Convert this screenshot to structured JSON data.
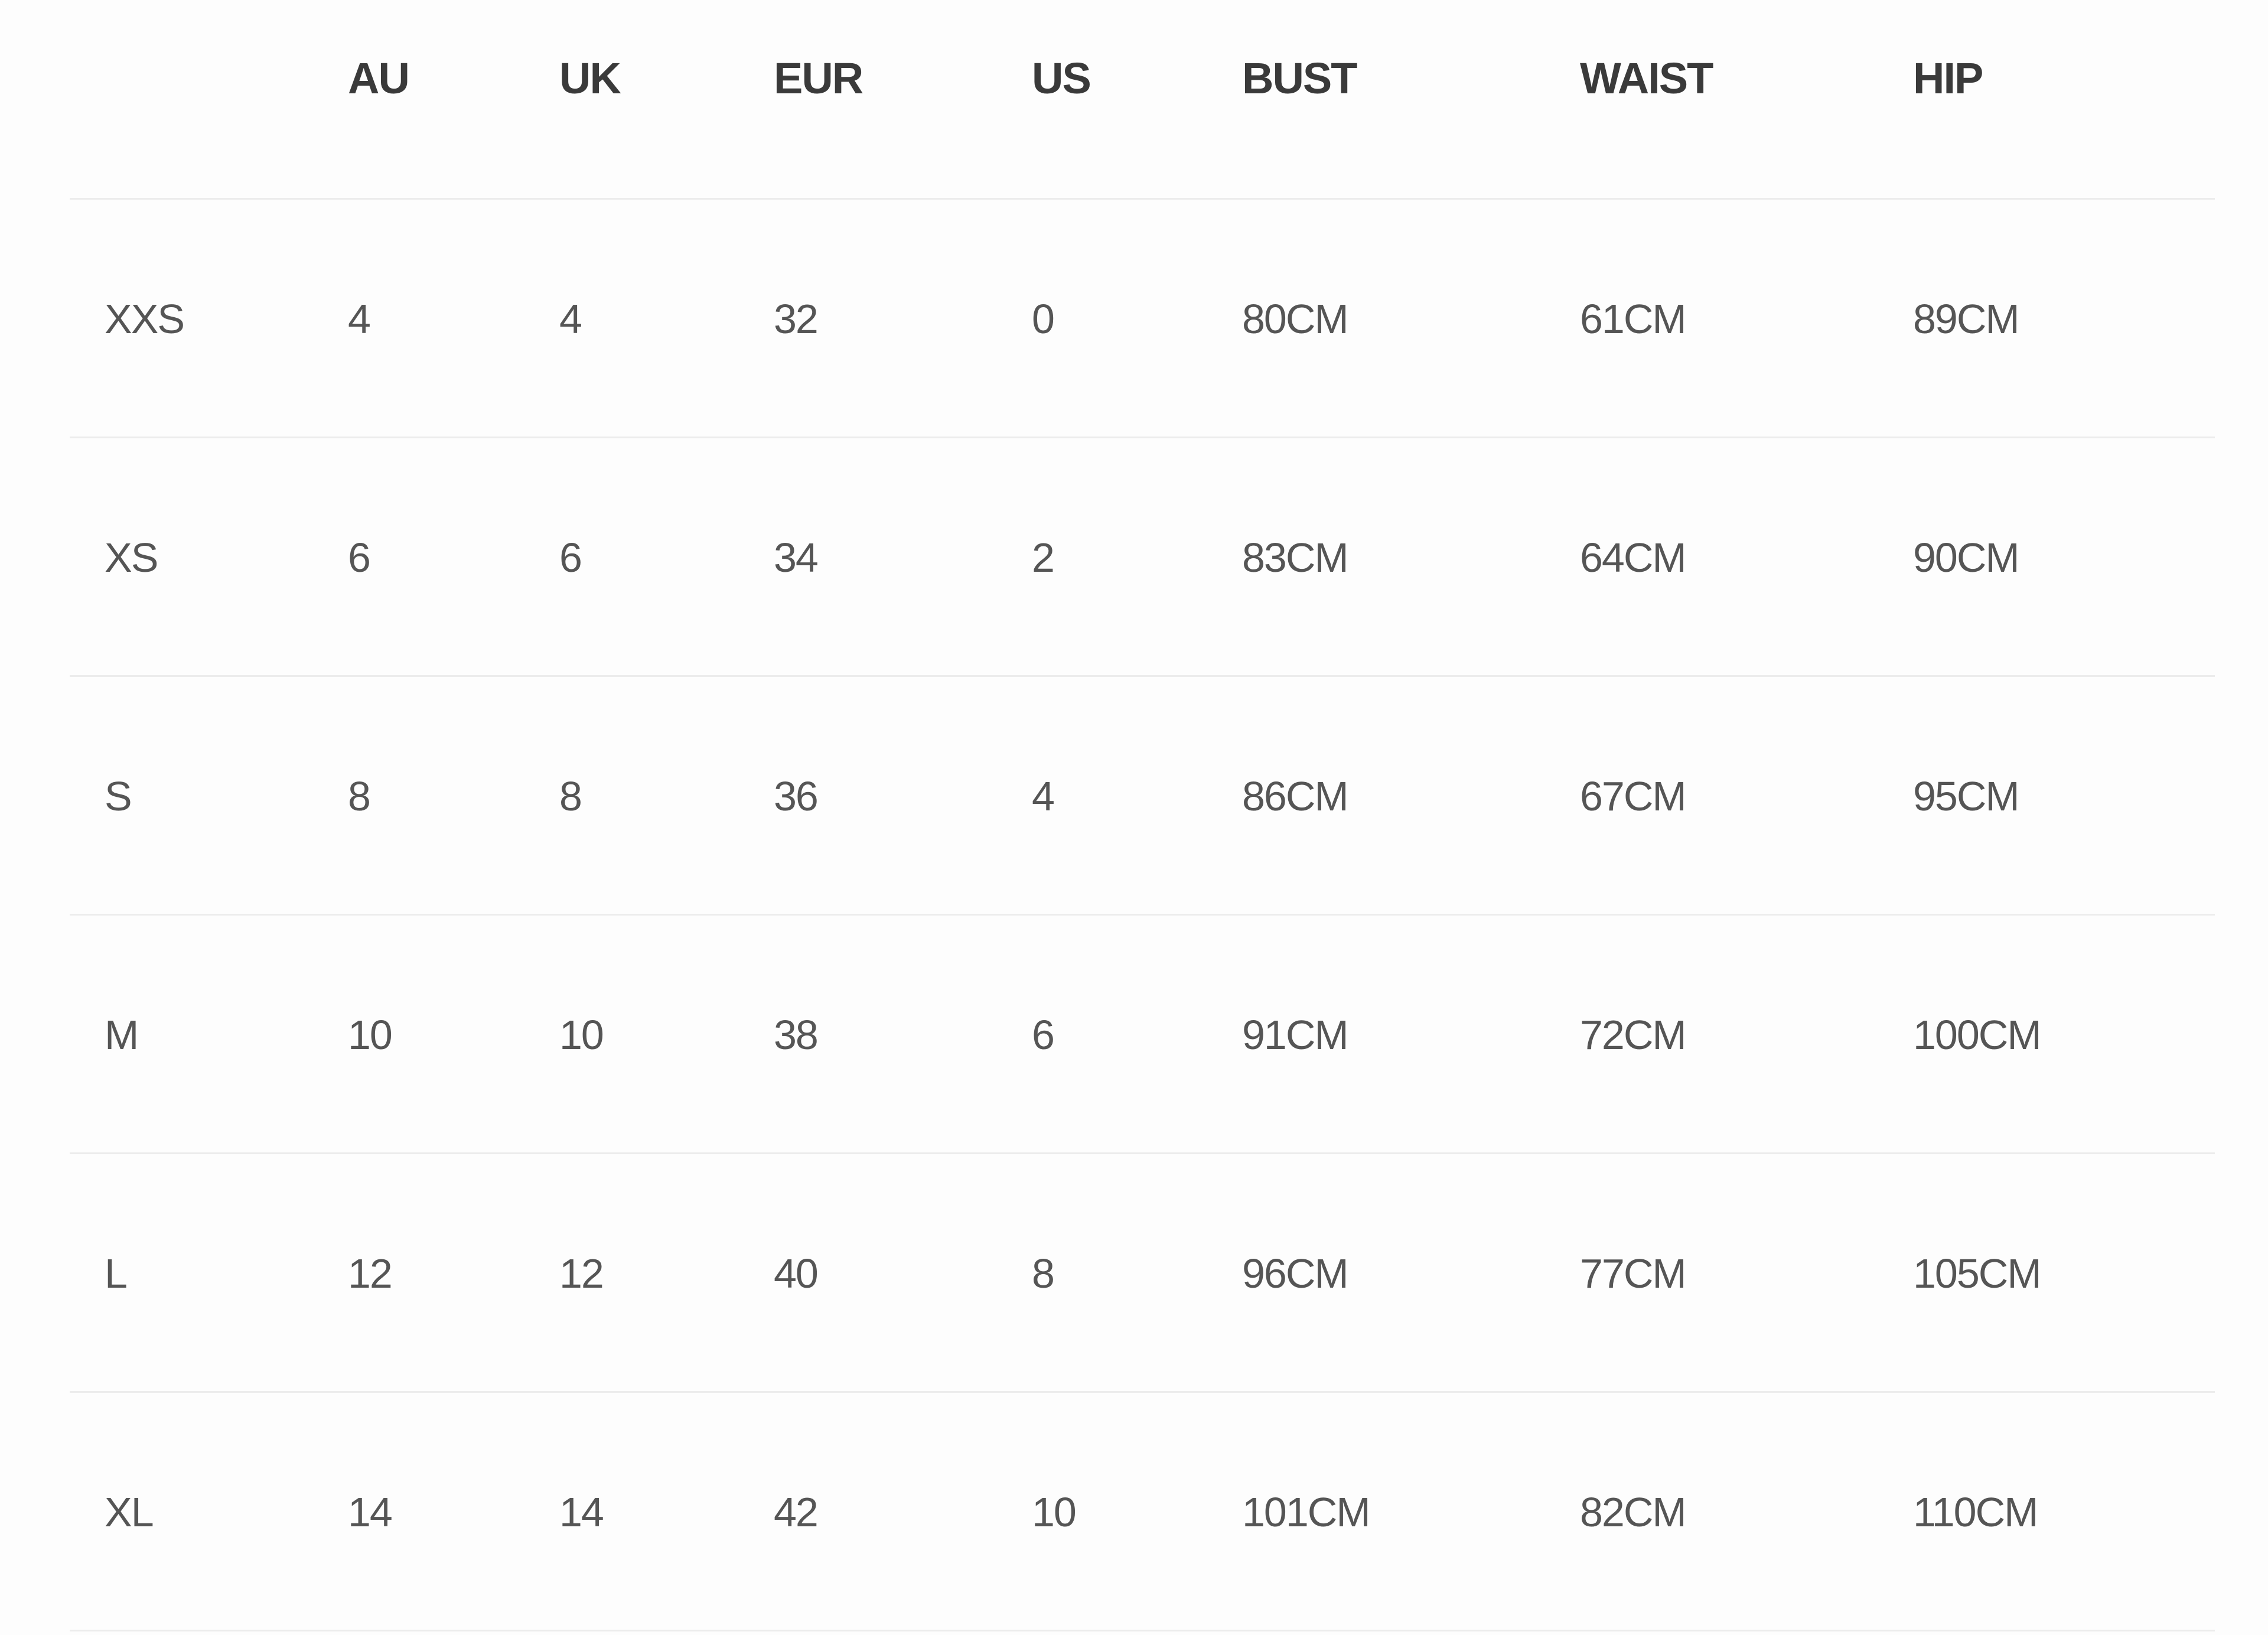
{
  "size_chart": {
    "columns": [
      "",
      "AU",
      "UK",
      "EUR",
      "US",
      "BUST",
      "WAIST",
      "HIP"
    ],
    "rows": [
      [
        "XXS",
        "4",
        "4",
        "32",
        "0",
        "80CM",
        "61CM",
        "89CM"
      ],
      [
        "XS",
        "6",
        "6",
        "34",
        "2",
        "83CM",
        "64CM",
        "90CM"
      ],
      [
        "S",
        "8",
        "8",
        "36",
        "4",
        "86CM",
        "67CM",
        "95CM"
      ],
      [
        "M",
        "10",
        "10",
        "38",
        "6",
        "91CM",
        "72CM",
        "100CM"
      ],
      [
        "L",
        "12",
        "12",
        "40",
        "8",
        "96CM",
        "77CM",
        "105CM"
      ],
      [
        "XL",
        "14",
        "14",
        "42",
        "10",
        "101CM",
        "82CM",
        "110CM"
      ]
    ]
  }
}
